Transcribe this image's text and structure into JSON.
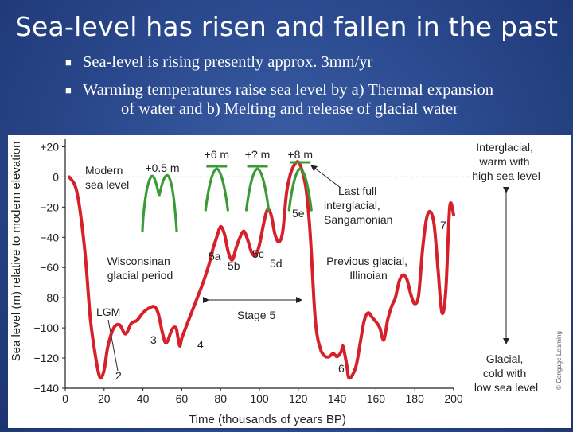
{
  "slide": {
    "title": "Sea-level has risen and fallen in the past",
    "bullets": [
      {
        "line1": "Sea-level is rising presently approx. 3mm/yr"
      },
      {
        "line1": "Warming temperatures raise sea level by a) Thermal expansion",
        "line2": "of water and b) Melting and release of glacial water"
      }
    ]
  },
  "chart_data": {
    "type": "line",
    "xlabel": "Time (thousands of years BP)",
    "ylabel": "Sea level (m) relative to modern elevation",
    "xlim": [
      0,
      200
    ],
    "ylim": [
      -140,
      25
    ],
    "xticks": [
      "0",
      "20",
      "40",
      "60",
      "80",
      "100",
      "120",
      "140",
      "160",
      "180",
      "200"
    ],
    "yticks": [
      "+20",
      "0",
      "−20",
      "−40",
      "−60",
      "−80",
      "−100",
      "−120",
      "−140"
    ],
    "series": [
      {
        "name": "Sea level",
        "color": "#d6202a",
        "x": [
          2,
          6,
          10,
          13,
          16,
          18,
          20,
          22,
          25,
          28,
          31,
          34,
          37,
          40,
          43,
          46,
          48,
          50,
          52,
          55,
          57,
          58,
          59,
          60,
          62,
          65,
          68,
          71,
          74,
          76,
          78,
          80,
          82,
          84,
          86,
          88,
          90,
          92,
          94,
          96,
          98,
          100,
          102,
          104,
          106,
          108,
          110,
          112,
          114,
          116,
          118,
          120,
          122,
          124,
          126,
          128,
          129,
          130,
          131,
          132,
          134,
          136,
          138,
          140,
          142,
          143,
          144,
          145,
          146,
          148,
          150,
          152,
          154,
          156,
          158,
          160,
          162,
          164,
          166,
          168,
          170,
          172,
          174,
          176,
          178,
          180,
          182,
          184,
          186,
          188,
          190,
          192,
          194,
          196,
          198,
          200
        ],
        "y": [
          0,
          -10,
          -48,
          -95,
          -122,
          -133,
          -128,
          -112,
          -100,
          -98,
          -104,
          -97,
          -95,
          -90,
          -87,
          -86,
          -91,
          -103,
          -110,
          -101,
          -100,
          -106,
          -112,
          -107,
          -100,
          -90,
          -80,
          -70,
          -58,
          -48,
          -40,
          -33,
          -38,
          -50,
          -55,
          -47,
          -40,
          -36,
          -42,
          -50,
          -52,
          -45,
          -32,
          -22,
          -25,
          -38,
          -43,
          -36,
          -10,
          2,
          8,
          10,
          4,
          -8,
          -35,
          -80,
          -98,
          -107,
          -112,
          -116,
          -119,
          -119,
          -117,
          -119,
          -116,
          -112,
          -118,
          -125,
          -133,
          -131,
          -124,
          -109,
          -95,
          -90,
          -93,
          -96,
          -100,
          -108,
          -95,
          -86,
          -80,
          -69,
          -65,
          -68,
          -78,
          -84,
          -78,
          -48,
          -28,
          -23,
          -32,
          -62,
          -90,
          -75,
          -20,
          -25
        ]
      }
    ],
    "mini_peaks": [
      {
        "label": "+0.5 m",
        "value": 0.5,
        "cx": 50
      },
      {
        "label": "+6 m",
        "value": 6,
        "cx": 78
      },
      {
        "label": "+? m",
        "value": null,
        "cx": 99
      },
      {
        "label": "+8 m",
        "value": 8,
        "cx": 121
      }
    ],
    "annotations": [
      {
        "id": "modern",
        "text": [
          "Modern",
          "sea level"
        ]
      },
      {
        "id": "lastfull",
        "text": [
          "Last full",
          "interglacial,",
          "Sangamonian"
        ]
      },
      {
        "id": "wisconsinan",
        "text": [
          "Wisconsinan",
          "glacial period"
        ]
      },
      {
        "id": "previous",
        "text": [
          "Previous glacial,",
          "Illinoian"
        ]
      },
      {
        "id": "lgm",
        "text": [
          "LGM"
        ]
      },
      {
        "id": "stage5",
        "text": [
          "Stage 5"
        ]
      },
      {
        "id": "interglacial",
        "text": [
          "Interglacial,",
          "warm with",
          "high sea level"
        ]
      },
      {
        "id": "glacial",
        "text": [
          "Glacial,",
          "cold with",
          "low sea level"
        ]
      },
      {
        "id": "credit",
        "text": [
          "© Cengage Learning"
        ]
      }
    ],
    "stage_labels": [
      "2",
      "3",
      "4",
      "5a",
      "5b",
      "5c",
      "5d",
      "5e",
      "6",
      "7"
    ]
  }
}
